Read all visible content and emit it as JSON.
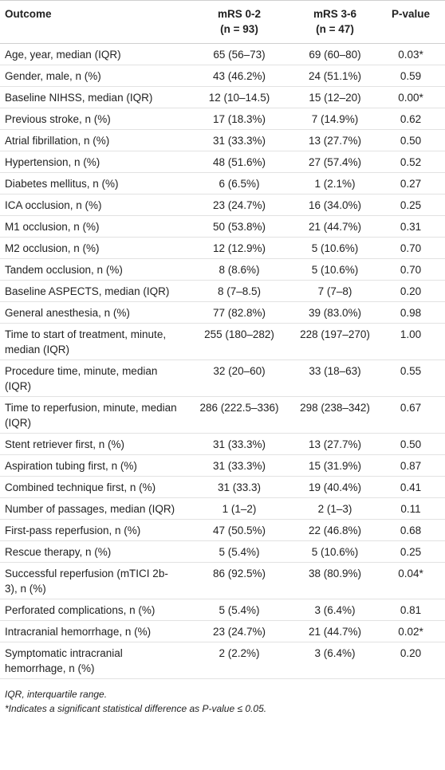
{
  "table": {
    "header": [
      {
        "label": "Outcome"
      },
      {
        "label": "mRS 0-2",
        "sub": "(n = 93)"
      },
      {
        "label": "mRS 3-6",
        "sub": "(n = 47)"
      },
      {
        "label": "P-value"
      }
    ],
    "rows": [
      [
        "Age, year, median (IQR)",
        "65 (56–73)",
        "69 (60–80)",
        "0.03*"
      ],
      [
        "Gender, male, n (%)",
        "43 (46.2%)",
        "24 (51.1%)",
        "0.59"
      ],
      [
        "Baseline NIHSS, median (IQR)",
        "12 (10–14.5)",
        "15 (12–20)",
        "0.00*"
      ],
      [
        "Previous stroke, n (%)",
        "17 (18.3%)",
        "7 (14.9%)",
        "0.62"
      ],
      [
        "Atrial fibrillation, n (%)",
        "31 (33.3%)",
        "13 (27.7%)",
        "0.50"
      ],
      [
        "Hypertension, n (%)",
        "48 (51.6%)",
        "27 (57.4%)",
        "0.52"
      ],
      [
        "Diabetes mellitus, n (%)",
        "6 (6.5%)",
        "1 (2.1%)",
        "0.27"
      ],
      [
        "ICA occlusion, n (%)",
        "23 (24.7%)",
        "16 (34.0%)",
        "0.25"
      ],
      [
        "M1 occlusion, n (%)",
        "50 (53.8%)",
        "21 (44.7%)",
        "0.31"
      ],
      [
        "M2 occlusion, n (%)",
        "12 (12.9%)",
        "5 (10.6%)",
        "0.70"
      ],
      [
        "Tandem occlusion, n (%)",
        "8 (8.6%)",
        "5 (10.6%)",
        "0.70"
      ],
      [
        "Baseline ASPECTS, median (IQR)",
        "8 (7–8.5)",
        "7 (7–8)",
        "0.20"
      ],
      [
        "General anesthesia, n (%)",
        "77 (82.8%)",
        "39 (83.0%)",
        "0.98"
      ],
      [
        "Time to start of treatment, minute, median (IQR)",
        "255 (180–282)",
        "228 (197–270)",
        "1.00"
      ],
      [
        "Procedure time, minute, median (IQR)",
        "32 (20–60)",
        "33 (18–63)",
        "0.55"
      ],
      [
        "Time to reperfusion, minute, median (IQR)",
        "286 (222.5–336)",
        "298 (238–342)",
        "0.67"
      ],
      [
        "Stent retriever first, n (%)",
        "31 (33.3%)",
        "13 (27.7%)",
        "0.50"
      ],
      [
        "Aspiration tubing first, n (%)",
        "31 (33.3%)",
        "15 (31.9%)",
        "0.87"
      ],
      [
        "Combined technique first, n (%)",
        "31 (33.3)",
        "19 (40.4%)",
        "0.41"
      ],
      [
        "Number of passages, median (IQR)",
        "1 (1–2)",
        "2 (1–3)",
        "0.11"
      ],
      [
        "First-pass reperfusion, n (%)",
        "47 (50.5%)",
        "22 (46.8%)",
        "0.68"
      ],
      [
        "Rescue therapy, n (%)",
        "5 (5.4%)",
        "5 (10.6%)",
        "0.25"
      ],
      [
        "Successful reperfusion (mTICI 2b-3), n (%)",
        "86 (92.5%)",
        "38 (80.9%)",
        "0.04*"
      ],
      [
        "Perforated complications, n (%)",
        "5 (5.4%)",
        "3 (6.4%)",
        "0.81"
      ],
      [
        "Intracranial hemorrhage, n (%)",
        "23 (24.7%)",
        "21 (44.7%)",
        "0.02*"
      ],
      [
        "Symptomatic intracranial hemorrhage, n (%)",
        "2 (2.2%)",
        "3 (6.4%)",
        "0.20"
      ]
    ]
  },
  "footnotes": [
    "IQR, interquartile range.",
    "*Indicates a significant statistical difference as P-value ≤ 0.05."
  ]
}
